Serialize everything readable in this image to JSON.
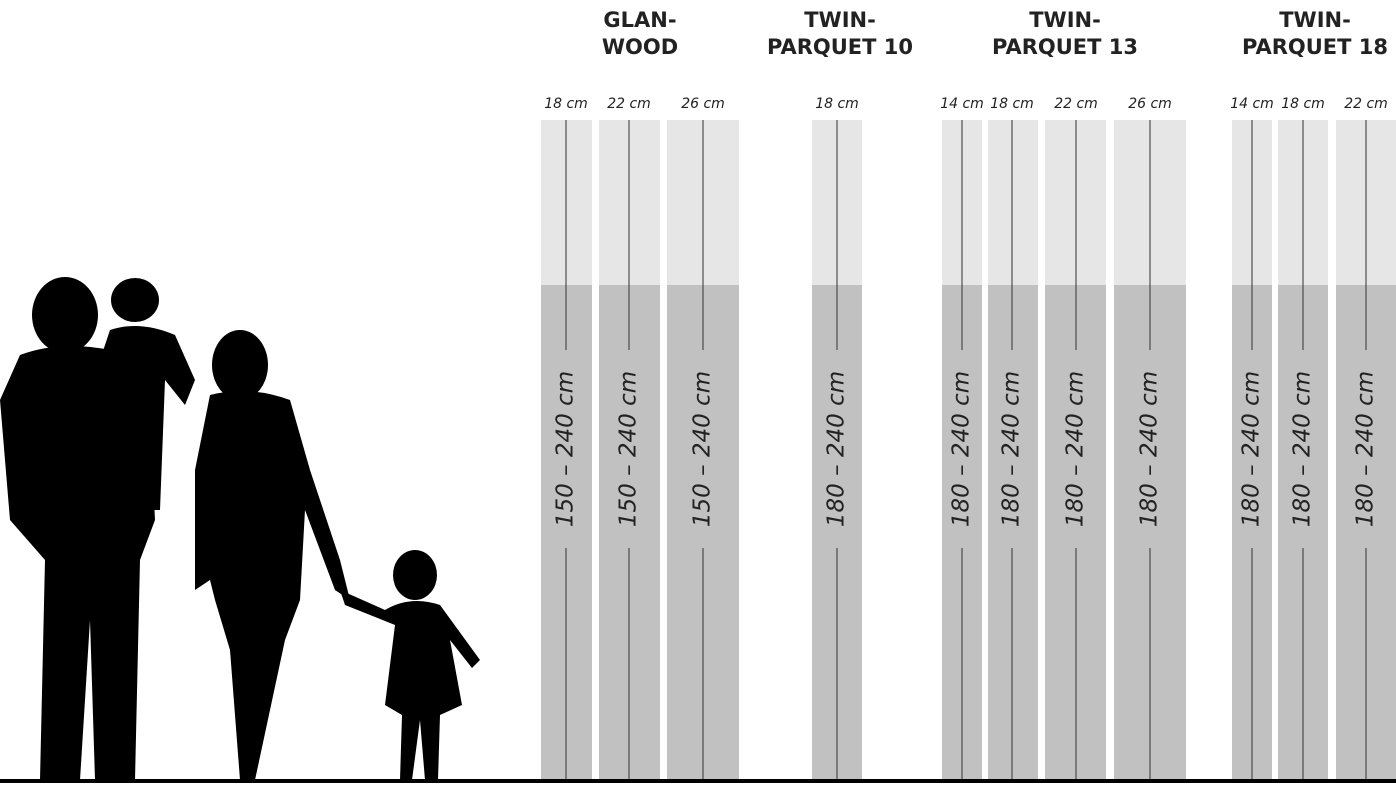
{
  "groups": [
    {
      "title_lines": [
        "GLAN-",
        "WOOD"
      ],
      "columns": [
        {
          "width": "18 cm",
          "length": "150 – 240 cm"
        },
        {
          "width": "22 cm",
          "length": "150 – 240 cm"
        },
        {
          "width": "26 cm",
          "length": "150 – 240 cm"
        }
      ]
    },
    {
      "title_lines": [
        "TWIN-",
        "PARQUET 10"
      ],
      "columns": [
        {
          "width": "18 cm",
          "length": "180 – 240 cm"
        }
      ]
    },
    {
      "title_lines": [
        "TWIN-",
        "PARQUET 13"
      ],
      "columns": [
        {
          "width": "14 cm",
          "length": "180 – 240 cm"
        },
        {
          "width": "18 cm",
          "length": "180 – 240 cm"
        },
        {
          "width": "22 cm",
          "length": "180 – 240 cm"
        },
        {
          "width": "26 cm",
          "length": "180 – 240 cm"
        }
      ]
    },
    {
      "title_lines": [
        "TWIN-",
        "PARQUET 18"
      ],
      "columns": [
        {
          "width": "14 cm",
          "length": "180 – 240 cm"
        },
        {
          "width": "18 cm",
          "length": "180 – 240 cm"
        },
        {
          "width": "22 cm",
          "length": "180 – 240 cm"
        }
      ]
    }
  ]
}
